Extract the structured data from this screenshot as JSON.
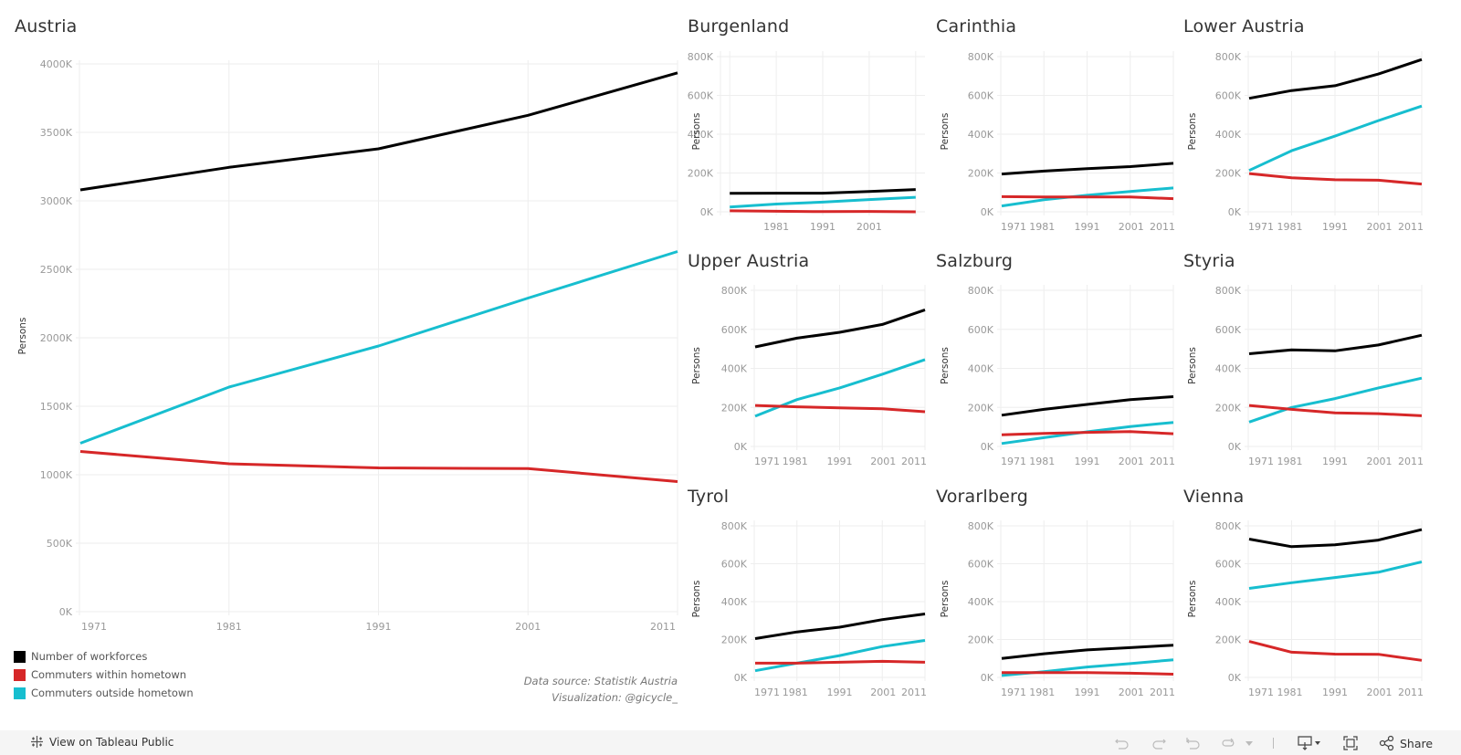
{
  "colors": {
    "workforces": "#000000",
    "within": "#d62728",
    "outside": "#17becf",
    "grid": "#eeeeee",
    "tick_text": "#999999",
    "axis_title": "#333333"
  },
  "legend": [
    {
      "label": "Number of workforces",
      "color": "#000000",
      "key": "workforces"
    },
    {
      "label": "Commuters within hometown",
      "color": "#d62728",
      "key": "within"
    },
    {
      "label": "Commuters outside hometown",
      "color": "#17becf",
      "key": "outside"
    }
  ],
  "source": {
    "line1": "Data source: Statistik Austria",
    "line2": "Visualization: @gicycle_"
  },
  "footer": {
    "view_on_tableau": "View on Tableau Public",
    "share": "Share",
    "icons": [
      "tableau-logo-icon",
      "undo-icon",
      "redo-icon",
      "revert-icon",
      "refresh-icon",
      "pause-dropdown-icon",
      "download-icon",
      "fullscreen-icon",
      "share-icon"
    ]
  },
  "chart_data": [
    {
      "type": "line",
      "title": "Austria",
      "xlabel": "",
      "ylabel": "Persons",
      "x": [
        1971,
        1981,
        1991,
        2001,
        2011
      ],
      "x_ticks": [
        "1971",
        "1981",
        "1991",
        "2001",
        "2011"
      ],
      "ylim": [
        0,
        4000000
      ],
      "y_ticks": [
        "0K",
        "500K",
        "1000K",
        "1500K",
        "2000K",
        "2500K",
        "3000K",
        "3500K",
        "4000K"
      ],
      "y_tick_values": [
        0,
        500000,
        1000000,
        1500000,
        2000000,
        2500000,
        3000000,
        3500000,
        4000000
      ],
      "grid": true,
      "series": [
        {
          "name": "Number of workforces",
          "key": "workforces",
          "values": [
            3080000,
            3245000,
            3380000,
            3625000,
            3935000
          ]
        },
        {
          "name": "Commuters within hometown",
          "key": "within",
          "values": [
            1170000,
            1080000,
            1050000,
            1045000,
            950000
          ]
        },
        {
          "name": "Commuters outside hometown",
          "key": "outside",
          "values": [
            1230000,
            1640000,
            1940000,
            2290000,
            2630000
          ]
        }
      ]
    },
    {
      "type": "line",
      "title": "Burgenland",
      "ylabel": "Persons",
      "x": [
        1971,
        1981,
        1991,
        2001,
        2011
      ],
      "x_ticks": [
        "1981",
        "1991",
        "2001"
      ],
      "ylim": [
        0,
        800000
      ],
      "y_ticks": [
        "0K",
        "200K",
        "400K",
        "600K",
        "800K"
      ],
      "y_tick_values": [
        0,
        200000,
        400000,
        600000,
        800000
      ],
      "grid": true,
      "series": [
        {
          "name": "Number of workforces",
          "key": "workforces",
          "values": [
            95000,
            96000,
            96000,
            105000,
            115000
          ]
        },
        {
          "name": "Commuters within hometown",
          "key": "within",
          "values": [
            5000,
            3000,
            1000,
            2000,
            0
          ]
        },
        {
          "name": "Commuters outside hometown",
          "key": "outside",
          "values": [
            25000,
            40000,
            50000,
            63000,
            75000
          ]
        }
      ]
    },
    {
      "type": "line",
      "title": "Carinthia",
      "ylabel": "Persons",
      "x": [
        1971,
        1981,
        1991,
        2001,
        2011
      ],
      "x_ticks": [
        "1971",
        "1981",
        "1991",
        "2001",
        "2011"
      ],
      "ylim": [
        0,
        800000
      ],
      "y_ticks": [
        "0K",
        "200K",
        "400K",
        "600K",
        "800K"
      ],
      "y_tick_values": [
        0,
        200000,
        400000,
        600000,
        800000
      ],
      "grid": true,
      "series": [
        {
          "name": "Number of workforces",
          "key": "workforces",
          "values": [
            195000,
            210000,
            222000,
            233000,
            250000
          ]
        },
        {
          "name": "Commuters within hometown",
          "key": "within",
          "values": [
            78000,
            76000,
            76000,
            76000,
            68000
          ]
        },
        {
          "name": "Commuters outside hometown",
          "key": "outside",
          "values": [
            30000,
            62000,
            85000,
            105000,
            123000
          ]
        }
      ]
    },
    {
      "type": "line",
      "title": "Lower Austria",
      "ylabel": "Persons",
      "x": [
        1971,
        1981,
        1991,
        2001,
        2011
      ],
      "x_ticks": [
        "1971",
        "1981",
        "1991",
        "2001",
        "2011"
      ],
      "ylim": [
        0,
        800000
      ],
      "y_ticks": [
        "0K",
        "200K",
        "400K",
        "600K",
        "800K"
      ],
      "y_tick_values": [
        0,
        200000,
        400000,
        600000,
        800000
      ],
      "grid": true,
      "series": [
        {
          "name": "Number of workforces",
          "key": "workforces",
          "values": [
            585000,
            625000,
            650000,
            710000,
            785000
          ]
        },
        {
          "name": "Commuters within hometown",
          "key": "within",
          "values": [
            197000,
            175000,
            165000,
            163000,
            143000
          ]
        },
        {
          "name": "Commuters outside hometown",
          "key": "outside",
          "values": [
            213000,
            315000,
            390000,
            470000,
            545000
          ]
        }
      ]
    },
    {
      "type": "line",
      "title": "Upper Austria",
      "ylabel": "Persons",
      "x": [
        1971,
        1981,
        1991,
        2001,
        2011
      ],
      "x_ticks": [
        "1971",
        "1981",
        "1991",
        "2001",
        "2011"
      ],
      "ylim": [
        0,
        800000
      ],
      "y_ticks": [
        "0K",
        "200K",
        "400K",
        "600K",
        "800K"
      ],
      "y_tick_values": [
        0,
        200000,
        400000,
        600000,
        800000
      ],
      "grid": true,
      "series": [
        {
          "name": "Number of workforces",
          "key": "workforces",
          "values": [
            510000,
            555000,
            585000,
            625000,
            700000
          ]
        },
        {
          "name": "Commuters within hometown",
          "key": "within",
          "values": [
            210000,
            203000,
            198000,
            193000,
            178000
          ]
        },
        {
          "name": "Commuters outside hometown",
          "key": "outside",
          "values": [
            155000,
            240000,
            300000,
            370000,
            445000
          ]
        }
      ]
    },
    {
      "type": "line",
      "title": "Salzburg",
      "ylabel": "Persons",
      "x": [
        1971,
        1981,
        1991,
        2001,
        2011
      ],
      "x_ticks": [
        "1971",
        "1981",
        "1991",
        "2001",
        "2011"
      ],
      "ylim": [
        0,
        800000
      ],
      "y_ticks": [
        "0K",
        "200K",
        "400K",
        "600K",
        "800K"
      ],
      "y_tick_values": [
        0,
        200000,
        400000,
        600000,
        800000
      ],
      "grid": true,
      "series": [
        {
          "name": "Number of workforces",
          "key": "workforces",
          "values": [
            160000,
            190000,
            215000,
            240000,
            255000
          ]
        },
        {
          "name": "Commuters within hometown",
          "key": "within",
          "values": [
            60000,
            67000,
            72000,
            76000,
            65000
          ]
        },
        {
          "name": "Commuters outside hometown",
          "key": "outside",
          "values": [
            15000,
            45000,
            75000,
            102000,
            123000
          ]
        }
      ]
    },
    {
      "type": "line",
      "title": "Styria",
      "ylabel": "Persons",
      "x": [
        1971,
        1981,
        1991,
        2001,
        2011
      ],
      "x_ticks": [
        "1971",
        "1981",
        "1991",
        "2001",
        "2011"
      ],
      "ylim": [
        0,
        800000
      ],
      "y_ticks": [
        "0K",
        "200K",
        "400K",
        "600K",
        "800K"
      ],
      "y_tick_values": [
        0,
        200000,
        400000,
        600000,
        800000
      ],
      "grid": true,
      "series": [
        {
          "name": "Number of workforces",
          "key": "workforces",
          "values": [
            475000,
            495000,
            490000,
            520000,
            570000
          ]
        },
        {
          "name": "Commuters within hometown",
          "key": "within",
          "values": [
            210000,
            190000,
            172000,
            168000,
            157000
          ]
        },
        {
          "name": "Commuters outside hometown",
          "key": "outside",
          "values": [
            125000,
            200000,
            245000,
            300000,
            350000
          ]
        }
      ]
    },
    {
      "type": "line",
      "title": "Tyrol",
      "ylabel": "Persons",
      "x": [
        1971,
        1981,
        1991,
        2001,
        2011
      ],
      "x_ticks": [
        "1971",
        "1981",
        "1991",
        "2001",
        "2011"
      ],
      "ylim": [
        0,
        800000
      ],
      "y_ticks": [
        "0K",
        "200K",
        "400K",
        "600K",
        "800K"
      ],
      "y_tick_values": [
        0,
        200000,
        400000,
        600000,
        800000
      ],
      "grid": true,
      "series": [
        {
          "name": "Number of workforces",
          "key": "workforces",
          "values": [
            205000,
            240000,
            265000,
            305000,
            335000
          ]
        },
        {
          "name": "Commuters within hometown",
          "key": "within",
          "values": [
            75000,
            75000,
            80000,
            85000,
            80000
          ]
        },
        {
          "name": "Commuters outside hometown",
          "key": "outside",
          "values": [
            35000,
            75000,
            115000,
            163000,
            195000
          ]
        }
      ]
    },
    {
      "type": "line",
      "title": "Vorarlberg",
      "ylabel": "Persons",
      "x": [
        1971,
        1981,
        1991,
        2001,
        2011
      ],
      "x_ticks": [
        "1971",
        "1981",
        "1991",
        "2001",
        "2011"
      ],
      "ylim": [
        0,
        800000
      ],
      "y_ticks": [
        "0K",
        "200K",
        "400K",
        "600K",
        "800K"
      ],
      "y_tick_values": [
        0,
        200000,
        400000,
        600000,
        800000
      ],
      "grid": true,
      "series": [
        {
          "name": "Number of workforces",
          "key": "workforces",
          "values": [
            100000,
            125000,
            145000,
            157000,
            170000
          ]
        },
        {
          "name": "Commuters within hometown",
          "key": "within",
          "values": [
            25000,
            25000,
            25000,
            22000,
            17000
          ]
        },
        {
          "name": "Commuters outside hometown",
          "key": "outside",
          "values": [
            10000,
            30000,
            55000,
            73000,
            93000
          ]
        }
      ]
    },
    {
      "type": "line",
      "title": "Vienna",
      "ylabel": "Persons",
      "x": [
        1971,
        1981,
        1991,
        2001,
        2011
      ],
      "x_ticks": [
        "1971",
        "1981",
        "1991",
        "2001",
        "2011"
      ],
      "ylim": [
        0,
        800000
      ],
      "y_ticks": [
        "0K",
        "200K",
        "400K",
        "600K",
        "800K"
      ],
      "y_tick_values": [
        0,
        200000,
        400000,
        600000,
        800000
      ],
      "grid": true,
      "series": [
        {
          "name": "Number of workforces",
          "key": "workforces",
          "values": [
            730000,
            690000,
            700000,
            725000,
            780000
          ]
        },
        {
          "name": "Commuters within hometown",
          "key": "within",
          "values": [
            190000,
            133000,
            123000,
            122000,
            90000
          ]
        },
        {
          "name": "Commuters outside hometown",
          "key": "outside",
          "values": [
            470000,
            500000,
            527000,
            555000,
            610000
          ]
        }
      ]
    }
  ]
}
